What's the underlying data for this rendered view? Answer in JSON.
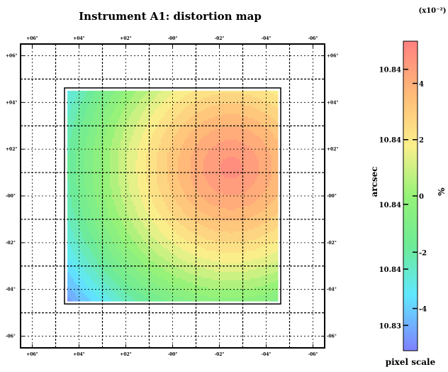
{
  "title": "Instrument A1: distortion map",
  "exponent_label": "(x10⁻²)",
  "chart_data": {
    "type": "heatmap",
    "title": "Instrument A1: distortion map",
    "x_tick_labels": [
      "+06°",
      "+04°",
      "+02°",
      "-00°",
      "-02°",
      "-04°",
      "-06°"
    ],
    "y_tick_labels": [
      "+06°",
      "+04°",
      "+02°",
      "-00°",
      "-02°",
      "-04°",
      "-06°"
    ],
    "x_range": [
      6.5,
      -6.5
    ],
    "y_range": [
      6.5,
      -6.5
    ],
    "detector_extent": {
      "x": [
        4.5,
        -4.5
      ],
      "y": [
        4.5,
        -4.5
      ]
    },
    "grid": true,
    "peak": {
      "x": -2.5,
      "y": 1.2,
      "value": 5.0
    },
    "min_corner": {
      "x": 4.5,
      "y": -4.5,
      "value": -5.0
    },
    "contour_levels": 24,
    "colorbar": {
      "left_label": "arcsec",
      "right_label": "%",
      "bottom_label": "pixel scale",
      "range_percent": [
        -5.5,
        5.5
      ],
      "left_ticks": [
        {
          "value": 4.5,
          "label": "10.84"
        },
        {
          "value": 2.0,
          "label": "10.84"
        },
        {
          "value": -0.3,
          "label": "10.84"
        },
        {
          "value": -2.6,
          "label": "10.84"
        },
        {
          "value": -4.6,
          "label": "10.83"
        }
      ],
      "right_ticks": [
        {
          "value": 4,
          "label": "4"
        },
        {
          "value": 2,
          "label": "2"
        },
        {
          "value": 0,
          "label": "0"
        },
        {
          "value": -2,
          "label": "-2"
        },
        {
          "value": -4,
          "label": "-4"
        }
      ]
    }
  }
}
